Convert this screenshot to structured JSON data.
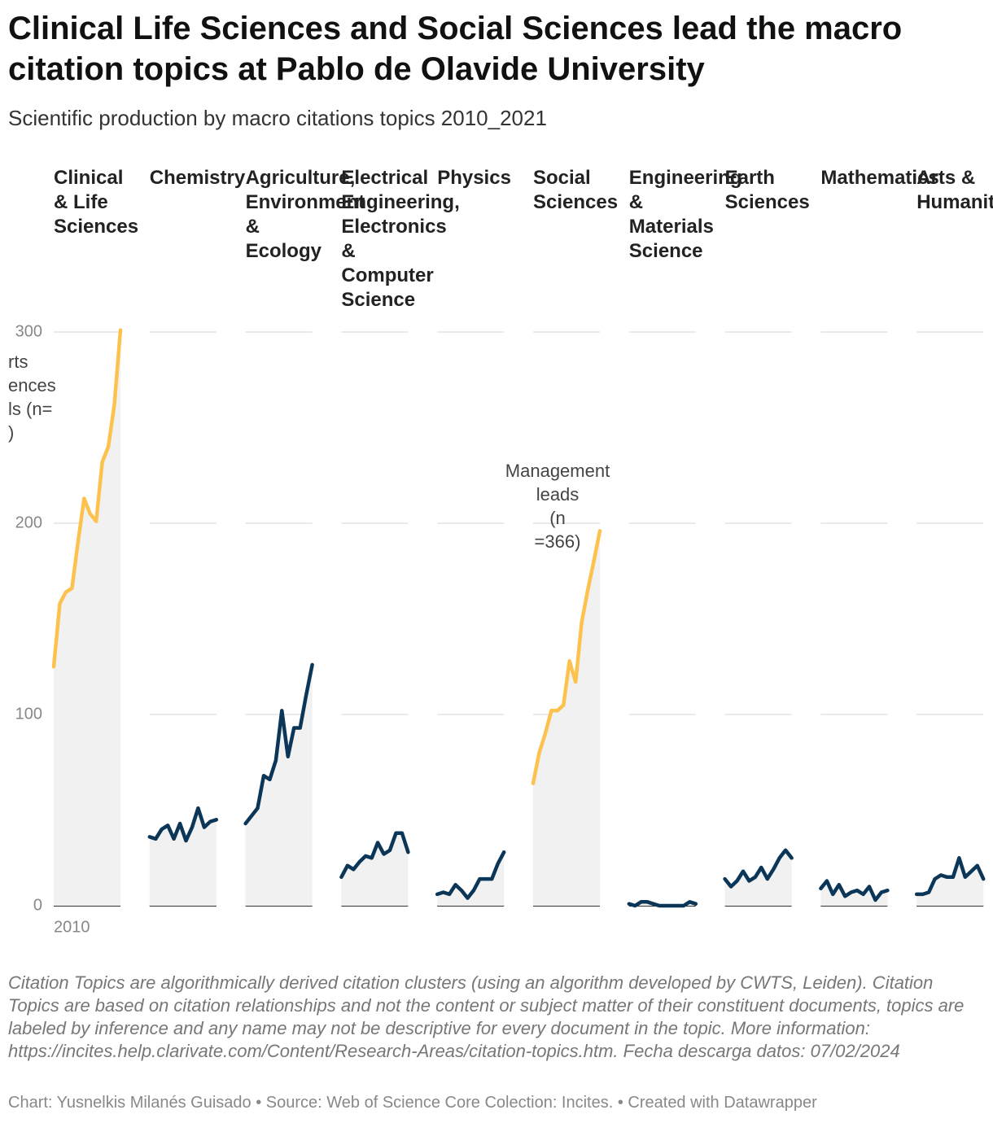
{
  "chart_data": {
    "type": "line",
    "title": "Clinical Life Sciences and Social Sciences lead the macro citation topics at Pablo de Olavide University",
    "subtitle": "Scientific production by macro citations topics 2010_2021",
    "x": [
      2010,
      2011,
      2012,
      2013,
      2014,
      2015,
      2016,
      2017,
      2018,
      2019,
      2020,
      2021
    ],
    "xlim": [
      2010,
      2021
    ],
    "xticks": [
      2010
    ],
    "ylim": [
      0,
      300
    ],
    "yticks": [
      0,
      100,
      200,
      300
    ],
    "grid": true,
    "series": [
      {
        "name": "Clinical & Life Sciences",
        "color": "#fdc24e",
        "values": [
          125,
          158,
          164,
          166,
          190,
          213,
          205,
          201,
          232,
          240,
          262,
          301
        ]
      },
      {
        "name": "Chemistry",
        "color": "#0b3658",
        "values": [
          36,
          35,
          40,
          42,
          35,
          43,
          34,
          41,
          51,
          41,
          44,
          45
        ]
      },
      {
        "name": "Agriculture, Environment & Ecology",
        "color": "#0b3658",
        "values": [
          43,
          47,
          51,
          68,
          66,
          76,
          102,
          78,
          93,
          93,
          110,
          126
        ]
      },
      {
        "name": "Electrical Engineering, Electronics & Computer Science",
        "color": "#0b3658",
        "values": [
          15,
          21,
          19,
          23,
          26,
          25,
          33,
          27,
          29,
          38,
          38,
          28
        ]
      },
      {
        "name": "Physics",
        "color": "#0b3658",
        "values": [
          6,
          7,
          6,
          11,
          8,
          4,
          8,
          14,
          14,
          14,
          22,
          28
        ]
      },
      {
        "name": "Social Sciences",
        "color": "#fdc24e",
        "values": [
          64,
          80,
          90,
          102,
          102,
          105,
          128,
          117,
          148,
          165,
          180,
          196
        ]
      },
      {
        "name": "Engineering & Materials Science",
        "color": "#0b3658",
        "values": [
          1,
          0,
          2,
          2,
          1,
          0,
          0,
          0,
          0,
          0,
          2,
          1
        ]
      },
      {
        "name": "Earth Sciences",
        "color": "#0b3658",
        "values": [
          14,
          10,
          13,
          18,
          13,
          15,
          20,
          14,
          19,
          25,
          29,
          25
        ]
      },
      {
        "name": "Mathematics",
        "color": "#0b3658",
        "values": [
          9,
          13,
          6,
          11,
          5,
          7,
          8,
          6,
          10,
          3,
          7,
          8
        ]
      },
      {
        "name": "Arts & Humanities",
        "color": "#0b3658",
        "values": [
          6,
          6,
          7,
          14,
          16,
          15,
          15,
          25,
          15,
          18,
          21,
          14
        ]
      }
    ],
    "annotations": [
      [
        "rts",
        "ences",
        "ls  (n=",
        ")"
      ],
      [
        "Management",
        "leads",
        "(n",
        "=366)"
      ]
    ],
    "notes": "Citation Topics are algorithmically derived citation clusters (using an algorithm developed by CWTS, Leiden). Citation Topics are based on citation relationships and not the content or subject matter of their constituent documents, topics are labeled by inference and any name may not be descriptive for every document in the topic. More information: https://incites.help.clarivate.com/Content/Research-Areas/citation-topics.htm. Fecha descarga datos: 07/02/2024",
    "byline": "Chart: Yusnelkis Milanés Guisado • Source: Web of Science Core Colection: Incites.  • Created with Datawrapper"
  }
}
